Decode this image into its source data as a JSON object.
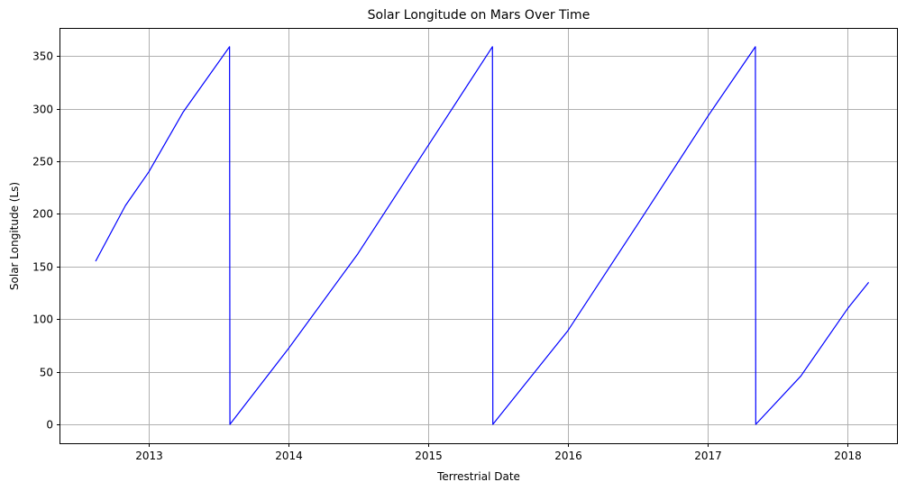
{
  "chart_data": {
    "type": "line",
    "title": "Solar Longitude on Mars Over Time",
    "xlabel": "Terrestrial Date",
    "ylabel": "Solar Longitude (Ls)",
    "x_ticks": [
      "2013",
      "2014",
      "2015",
      "2016",
      "2017",
      "2018"
    ],
    "y_ticks": [
      0,
      50,
      100,
      150,
      200,
      250,
      300,
      350
    ],
    "xlim": [
      "2012-05-15",
      "2018-05-10"
    ],
    "ylim": [
      -18,
      376
    ],
    "grid": true,
    "line_color": "#0000ff",
    "series": [
      {
        "points": [
          {
            "x": "2012-08-15",
            "y": 155
          },
          {
            "x": "2012-11-01",
            "y": 208
          },
          {
            "x": "2013-01-01",
            "y": 240
          },
          {
            "x": "2013-04-01",
            "y": 297
          },
          {
            "x": "2013-07-31",
            "y": 359
          },
          {
            "x": "2013-08-01",
            "y": 0
          },
          {
            "x": "2014-01-01",
            "y": 72
          },
          {
            "x": "2014-07-01",
            "y": 162
          },
          {
            "x": "2015-01-01",
            "y": 265
          },
          {
            "x": "2015-06-18",
            "y": 359
          },
          {
            "x": "2015-06-19",
            "y": 0
          },
          {
            "x": "2016-01-01",
            "y": 89
          },
          {
            "x": "2016-07-01",
            "y": 190
          },
          {
            "x": "2017-01-01",
            "y": 293
          },
          {
            "x": "2017-05-05",
            "y": 359
          },
          {
            "x": "2017-05-06",
            "y": 0
          },
          {
            "x": "2017-09-01",
            "y": 46
          },
          {
            "x": "2018-01-01",
            "y": 110
          },
          {
            "x": "2018-02-25",
            "y": 135
          }
        ]
      }
    ]
  }
}
